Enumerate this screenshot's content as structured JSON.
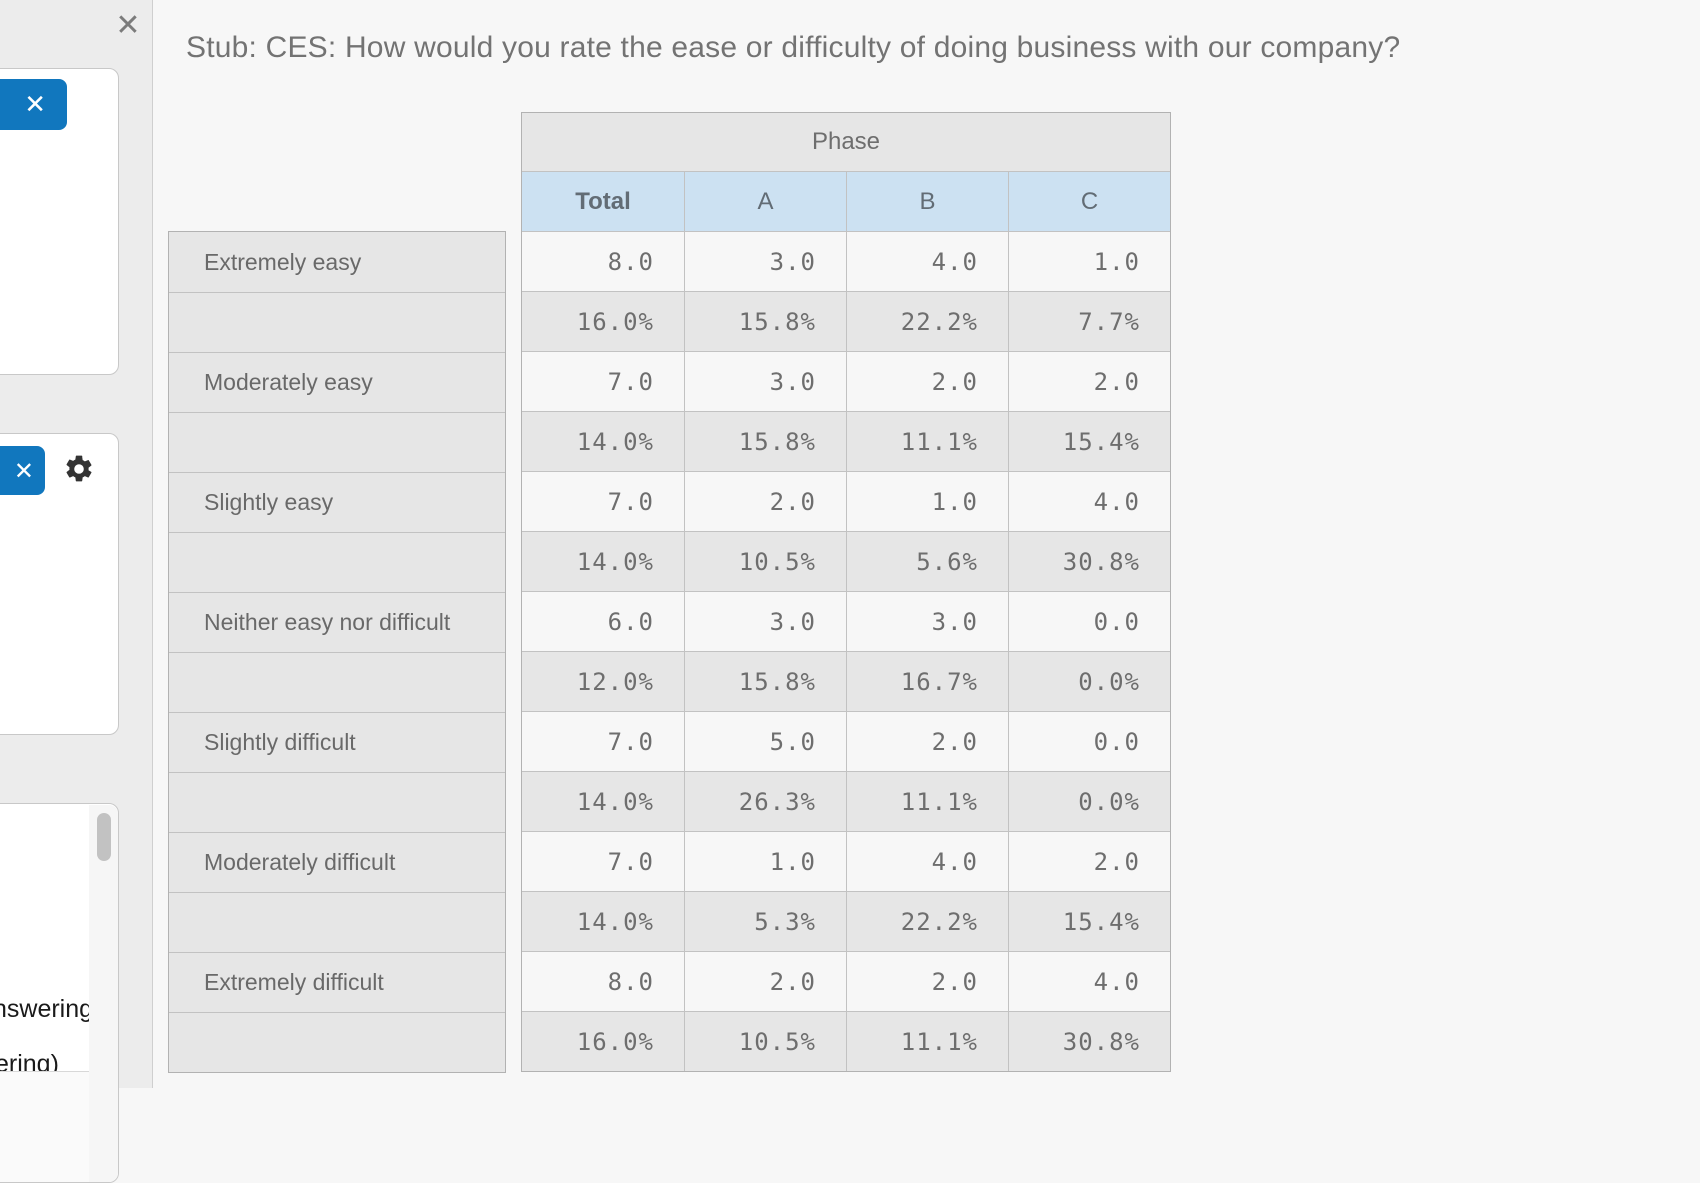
{
  "header": {
    "title": "Stub: CES: How would you rate the ease or difficulty of doing business with our company?"
  },
  "sidebar": {
    "panel_close_icon": "✕",
    "card1": {
      "close_icon": "✕"
    },
    "card2": {
      "close_icon": "✕",
      "settings_icon": "gear"
    },
    "card3": {
      "text_line_1": "nswering",
      "text_line_2": "ering)"
    }
  },
  "table": {
    "banner": "Phase",
    "columns": [
      "Total",
      "A",
      "B",
      "C"
    ],
    "rows": [
      {
        "label": "Extremely easy",
        "counts": [
          "8.0",
          "3.0",
          "4.0",
          "1.0"
        ],
        "pcts": [
          "16.0%",
          "15.8%",
          "22.2%",
          "7.7%"
        ]
      },
      {
        "label": "Moderately easy",
        "counts": [
          "7.0",
          "3.0",
          "2.0",
          "2.0"
        ],
        "pcts": [
          "14.0%",
          "15.8%",
          "11.1%",
          "15.4%"
        ]
      },
      {
        "label": "Slightly easy",
        "counts": [
          "7.0",
          "2.0",
          "1.0",
          "4.0"
        ],
        "pcts": [
          "14.0%",
          "10.5%",
          "5.6%",
          "30.8%"
        ]
      },
      {
        "label": "Neither easy nor difficult",
        "counts": [
          "6.0",
          "3.0",
          "3.0",
          "0.0"
        ],
        "pcts": [
          "12.0%",
          "15.8%",
          "16.7%",
          "0.0%"
        ]
      },
      {
        "label": "Slightly difficult",
        "counts": [
          "7.0",
          "5.0",
          "2.0",
          "0.0"
        ],
        "pcts": [
          "14.0%",
          "26.3%",
          "11.1%",
          "0.0%"
        ]
      },
      {
        "label": "Moderately difficult",
        "counts": [
          "7.0",
          "1.0",
          "4.0",
          "2.0"
        ],
        "pcts": [
          "14.0%",
          "5.3%",
          "22.2%",
          "15.4%"
        ]
      },
      {
        "label": "Extremely difficult",
        "counts": [
          "8.0",
          "2.0",
          "2.0",
          "4.0"
        ],
        "pcts": [
          "16.0%",
          "10.5%",
          "11.1%",
          "30.8%"
        ]
      }
    ]
  },
  "colors": {
    "accent_blue": "#1177be",
    "header_blue": "#cce1f2",
    "row_gray": "#e6e6e6"
  }
}
